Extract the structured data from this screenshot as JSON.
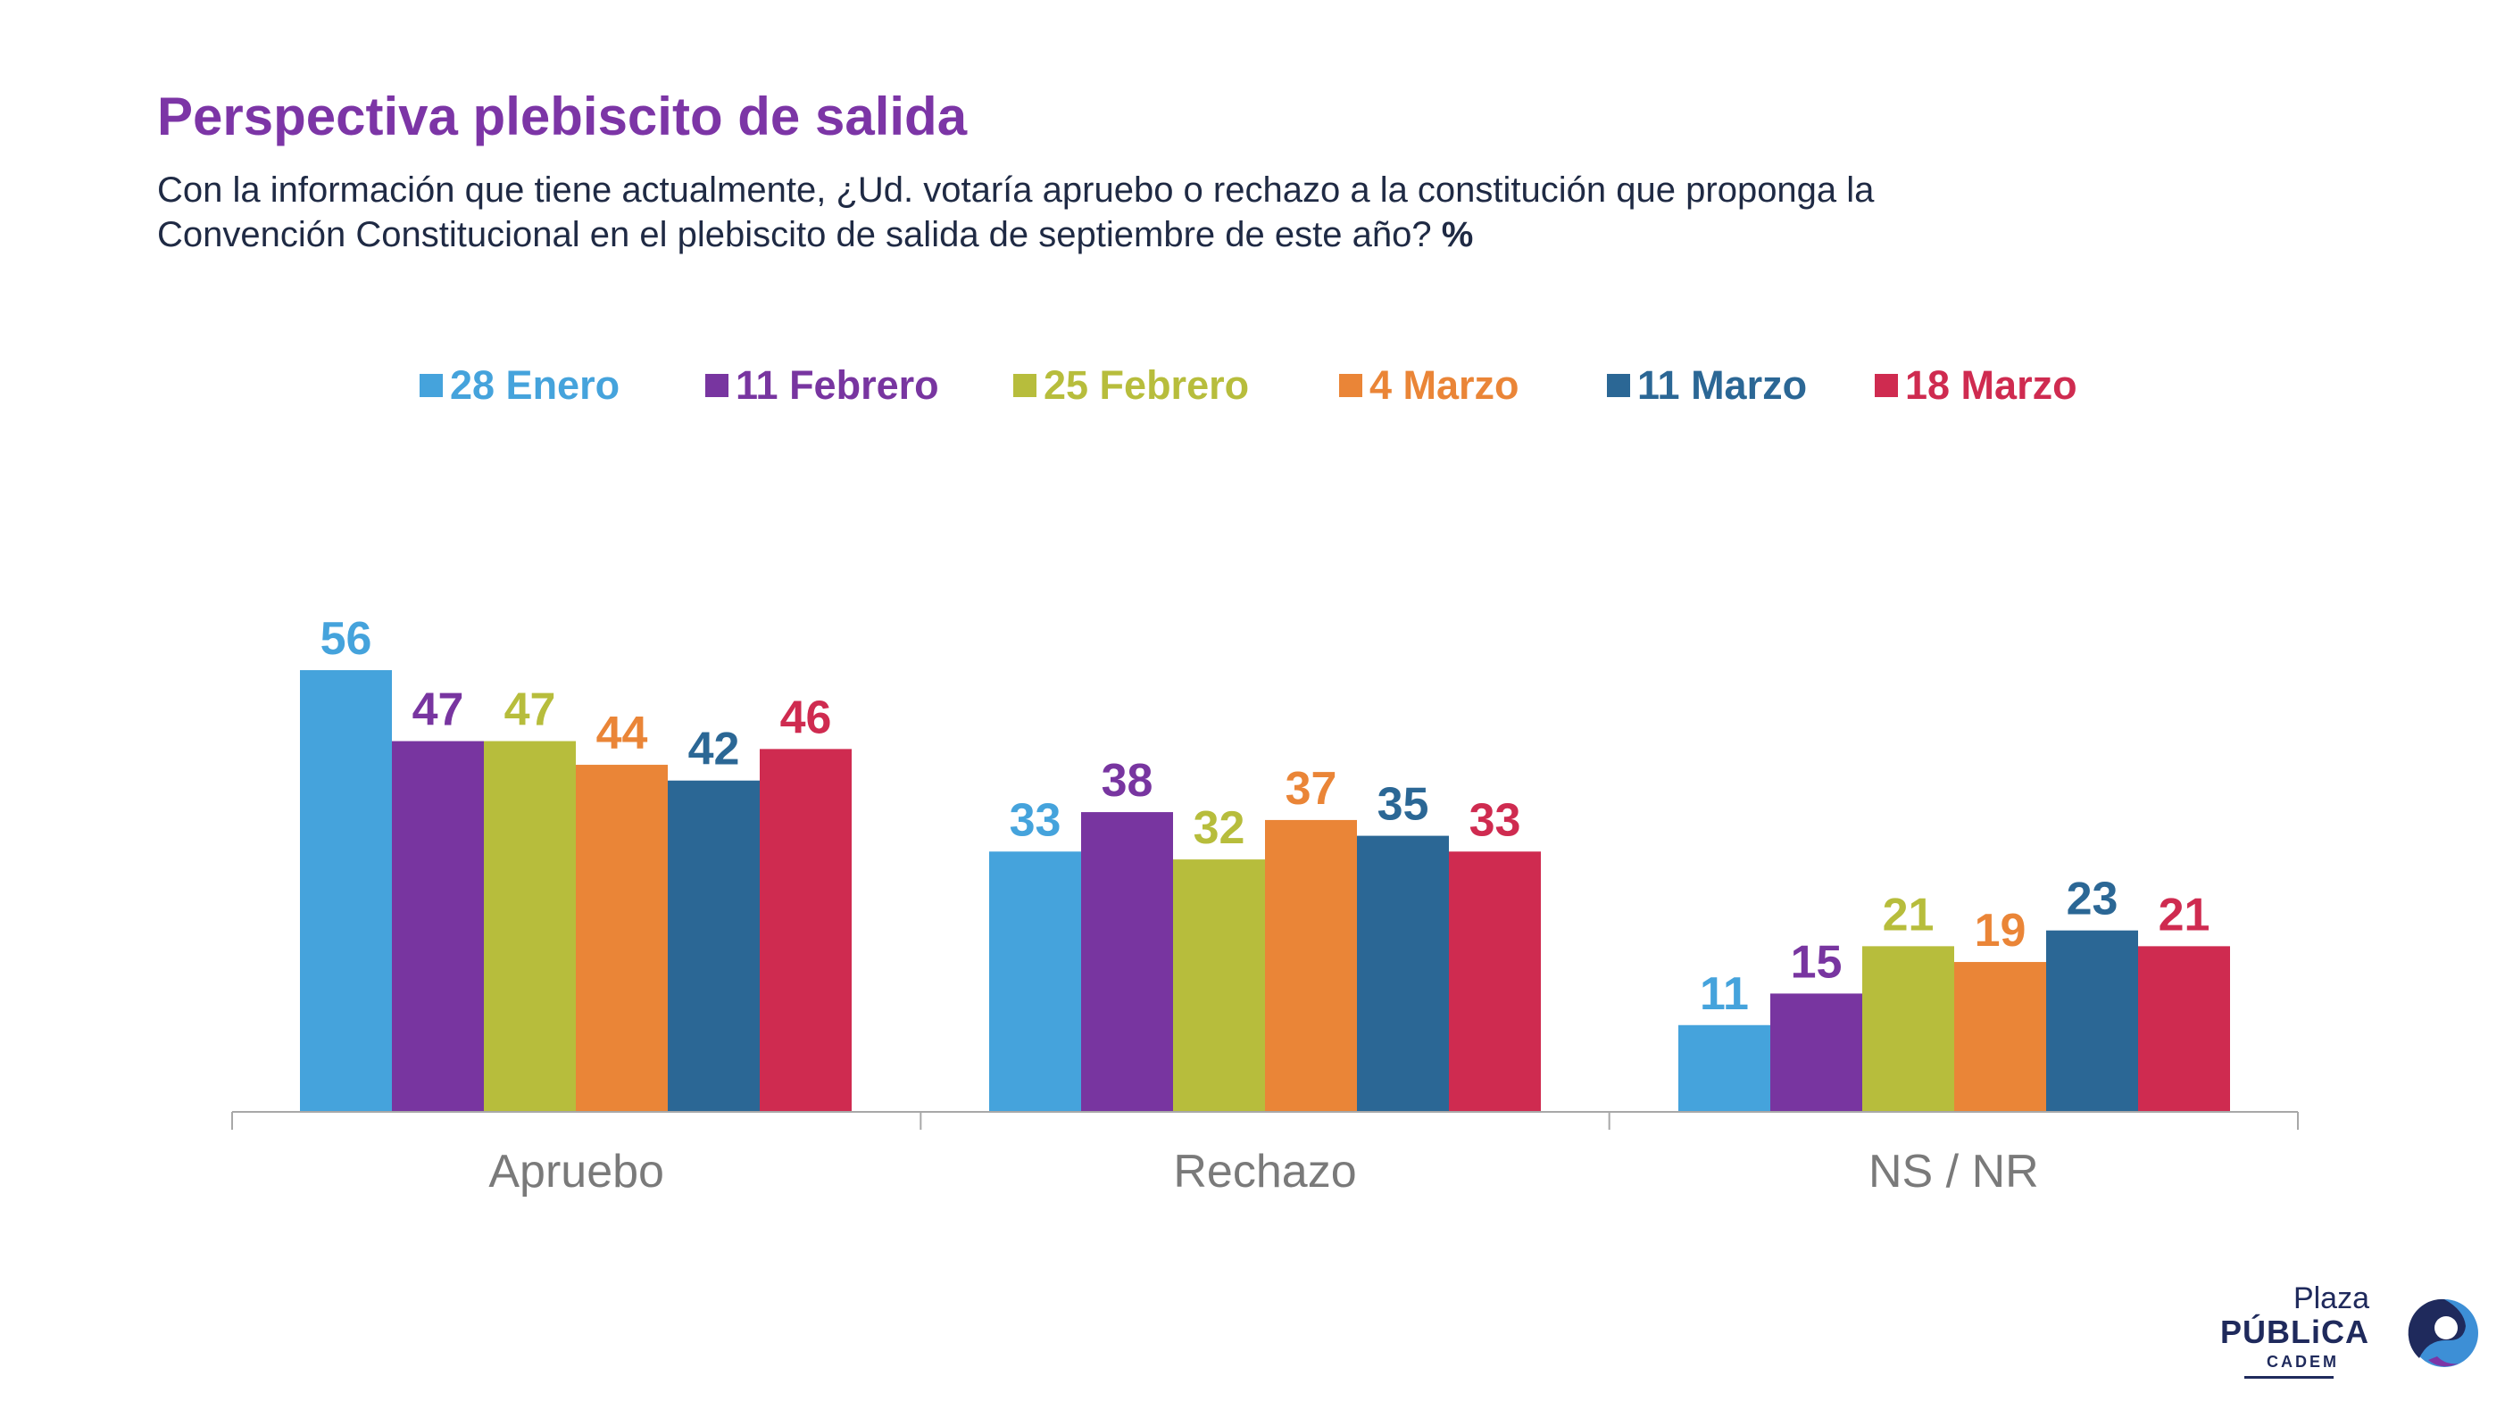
{
  "header": {
    "title": "Perspectiva plebiscito de salida",
    "subtitle_line1": "Con la información que tiene actualmente, ¿Ud. votaría apruebo o rechazo a la constitución que proponga la",
    "subtitle_line2": "Convención Constitucional en el plebiscito de salida de septiembre de este año?",
    "subtitle_unit": "%"
  },
  "brand": {
    "plaza": "Plaza",
    "publica": "PÚBLiCA",
    "cadem": "CADEM",
    "logo_icon": "swirl-logo-icon",
    "color_dark": "#1f2a5c",
    "color_blue": "#3d8fd6",
    "color_purple": "#7c35a6"
  },
  "chart_data": {
    "type": "bar",
    "categories": [
      "Apruebo",
      "Rechazo",
      "NS / NR"
    ],
    "series": [
      {
        "name": "28 Enero",
        "color": "#45a3dc",
        "values": [
          56,
          33,
          11
        ]
      },
      {
        "name": "11 Febrero",
        "color": "#7835a0",
        "values": [
          47,
          38,
          15
        ]
      },
      {
        "name": "25 Febrero",
        "color": "#b7bd3c",
        "values": [
          47,
          32,
          21
        ]
      },
      {
        "name": "4 Marzo",
        "color": "#ea8537",
        "values": [
          44,
          37,
          19
        ]
      },
      {
        "name": "11 Marzo",
        "color": "#2b6795",
        "values": [
          42,
          35,
          23
        ]
      },
      {
        "name": "18 Marzo",
        "color": "#cf2b50",
        "values": [
          46,
          33,
          21
        ]
      }
    ],
    "ylim": [
      0,
      56
    ],
    "grid": false,
    "legend": "top",
    "data_labels": true
  }
}
